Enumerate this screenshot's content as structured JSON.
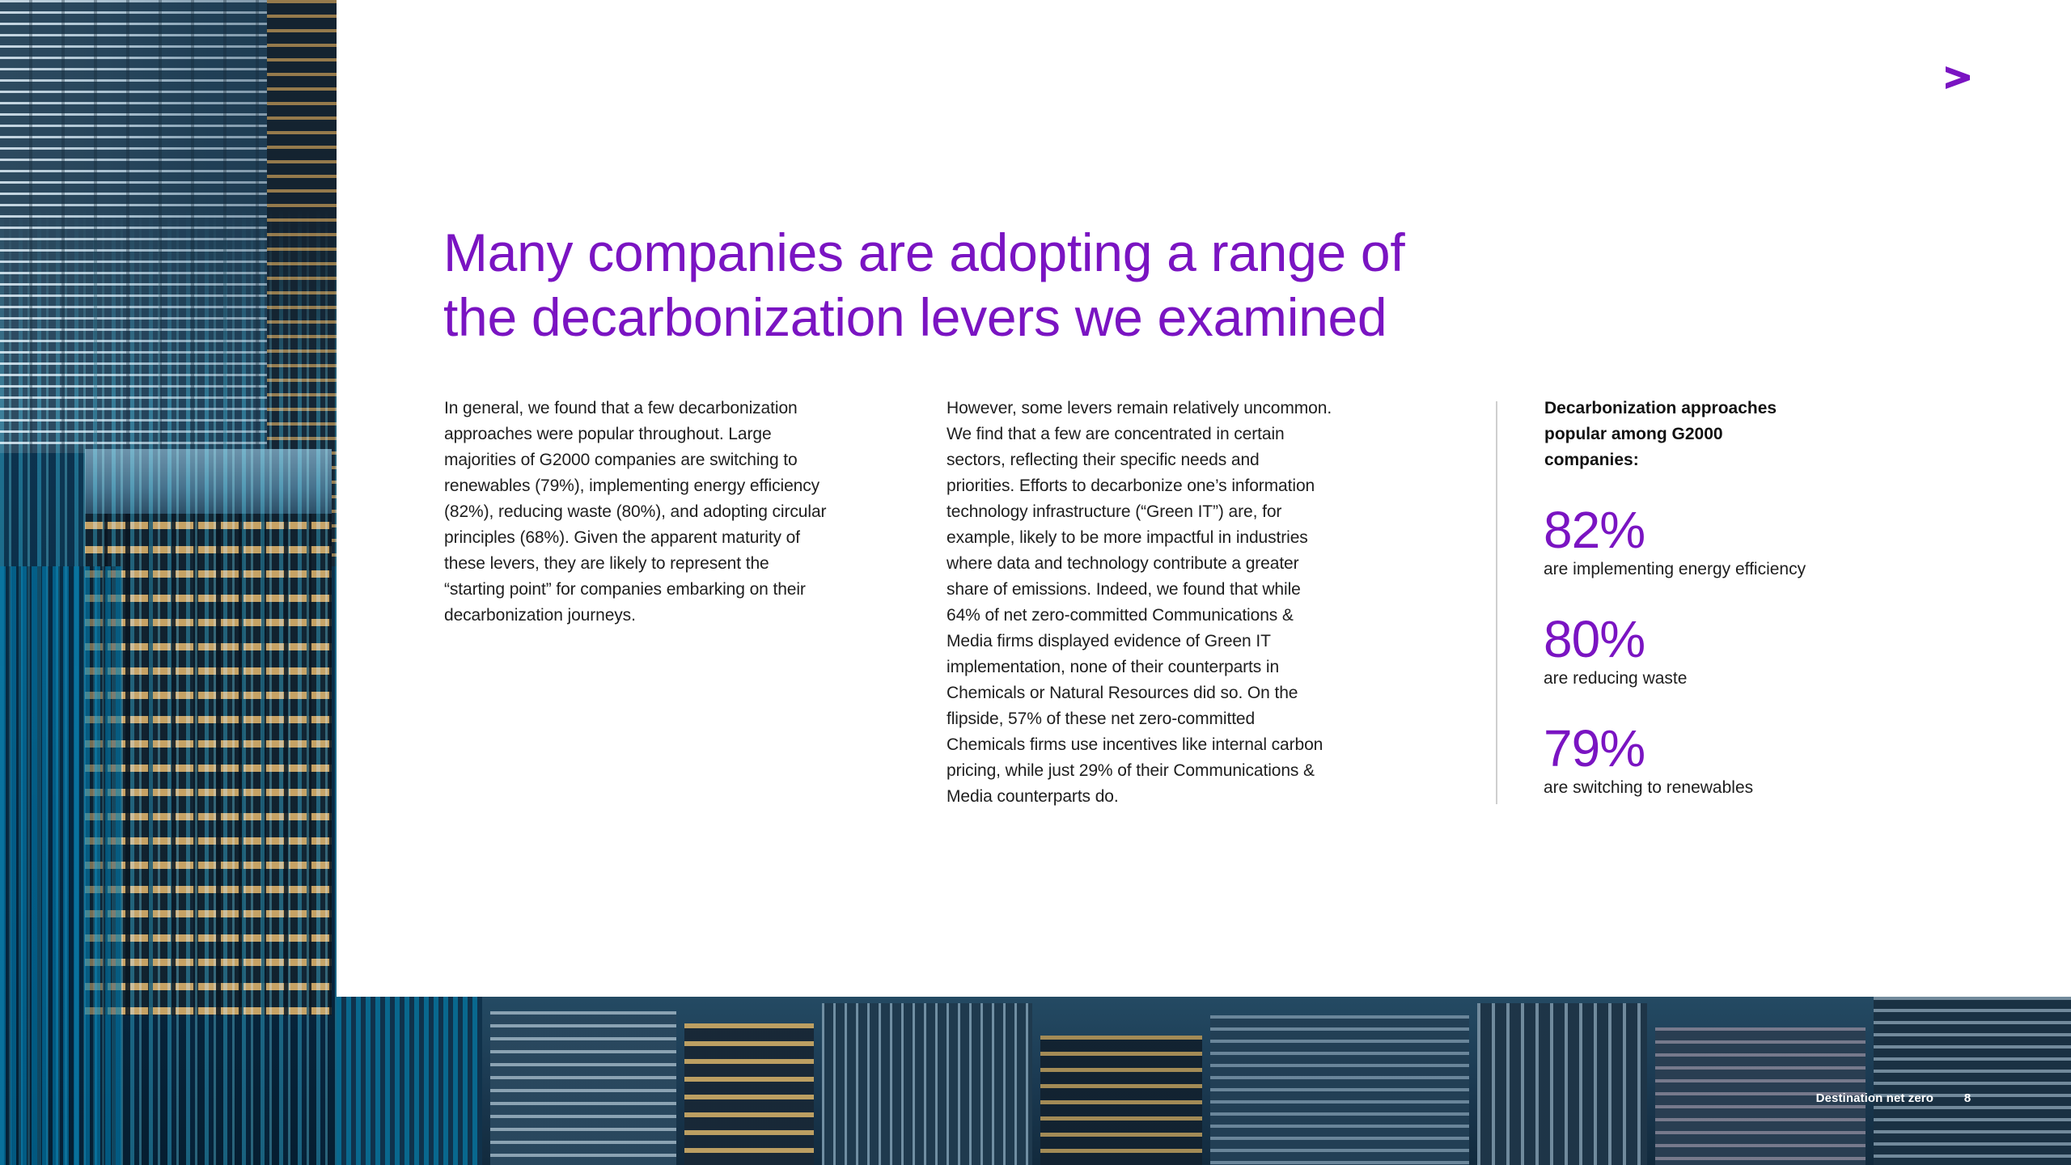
{
  "title": {
    "line1": "Many companies are adopting a range of",
    "line2": "the decarbonization levers we examined"
  },
  "column1": {
    "lines": [
      "In general, we found that a few decarbonization",
      "approaches were popular throughout. Large",
      "majorities of G2000 companies are switching to",
      "renewables (79%), implementing energy efficiency",
      "(82%), reducing waste (80%), and adopting circular",
      "principles (68%). Given the apparent maturity of",
      "these levers, they are likely to represent the",
      "“starting point” for companies embarking on their",
      "decarbonization journeys."
    ]
  },
  "column2": {
    "lines": [
      "However, some levers remain relatively uncommon.",
      "We find that a few are concentrated in certain",
      "sectors, reflecting their specific needs and",
      "priorities. Efforts to decarbonize one’s information",
      "technology infrastructure (“Green IT”) are, for",
      "example, likely to be more impactful in industries",
      "where data and technology contribute a greater",
      "share of emissions. Indeed, we found that while",
      "64% of net zero-committed Communications &",
      "Media firms displayed evidence of Green IT",
      "implementation, none of their counterparts in",
      "Chemicals or Natural Resources did so. On the",
      "flipside, 57% of these net zero-committed",
      "Chemicals firms use incentives like internal carbon",
      "pricing, while just 29% of their Communications &",
      "Media counterparts do."
    ]
  },
  "stats": {
    "heading_lines": [
      "Decarbonization approaches",
      "popular among G2000",
      "companies:"
    ],
    "items": [
      {
        "value": "82%",
        "label": "are implementing energy efficiency"
      },
      {
        "value": "80%",
        "label": "are reducing waste"
      },
      {
        "value": "79%",
        "label": "are switching to renewables"
      }
    ]
  },
  "footer": {
    "label": "Destination net zero",
    "page_number": "8"
  },
  "colors": {
    "accent_purple": "#7a14c2",
    "body_text": "#1e1e1e",
    "divider": "#cfcfcf"
  },
  "logo": {
    "icon": "accenture-greater-than-icon"
  }
}
